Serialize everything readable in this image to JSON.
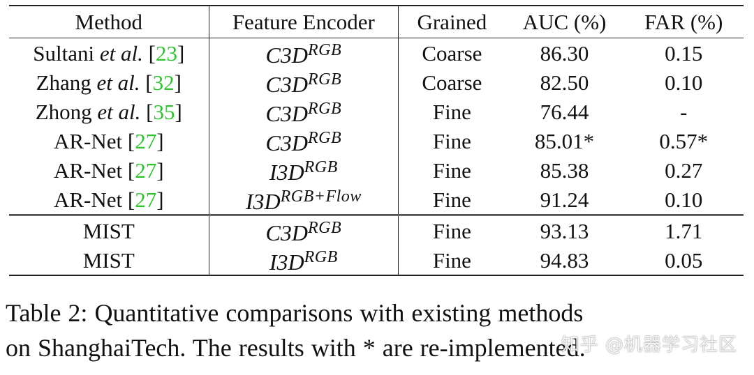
{
  "table": {
    "headers": [
      "Method",
      "Feature Encoder",
      "Grained",
      "AUC (%)",
      "FAR (%)"
    ],
    "rows": [
      {
        "method": "Sultani",
        "etal": "et al.",
        "ref": "23",
        "encoder_base": "C3D",
        "encoder_sup": "RGB",
        "grained": "Coarse",
        "auc": "86.30",
        "far": "0.15"
      },
      {
        "method": "Zhang",
        "etal": "et al.",
        "ref": "32",
        "encoder_base": "C3D",
        "encoder_sup": "RGB",
        "grained": "Coarse",
        "auc": "82.50",
        "far": "0.10"
      },
      {
        "method": "Zhong",
        "etal": "et al.",
        "ref": "35",
        "encoder_base": "C3D",
        "encoder_sup": "RGB",
        "grained": "Fine",
        "auc": "76.44",
        "far": "-"
      },
      {
        "method": "AR-Net",
        "etal": "",
        "ref": "27",
        "encoder_base": "C3D",
        "encoder_sup": "RGB",
        "grained": "Fine",
        "auc": "85.01*",
        "far": "0.57*"
      },
      {
        "method": "AR-Net",
        "etal": "",
        "ref": "27",
        "encoder_base": "I3D",
        "encoder_sup": "RGB",
        "grained": "Fine",
        "auc": "85.38",
        "far": "0.27"
      },
      {
        "method": "AR-Net",
        "etal": "",
        "ref": "27",
        "encoder_base": "I3D",
        "encoder_sup": "RGB+Flow",
        "grained": "Fine",
        "auc": "91.24",
        "far": "0.10"
      },
      {
        "method": "MIST",
        "etal": "",
        "ref": "",
        "encoder_base": "C3D",
        "encoder_sup": "RGB",
        "grained": "Fine",
        "auc": "93.13",
        "far": "1.71"
      },
      {
        "method": "MIST",
        "etal": "",
        "ref": "",
        "encoder_base": "I3D",
        "encoder_sup": "RGB",
        "grained": "Fine",
        "auc": "94.83",
        "far": "0.05"
      }
    ]
  },
  "caption": {
    "line1": "Table 2:  Quantitative comparisons with existing methods",
    "line2": "on ShanghaiTech. The results with * are re-implemented."
  },
  "watermark": "知乎 @机器学习社区"
}
